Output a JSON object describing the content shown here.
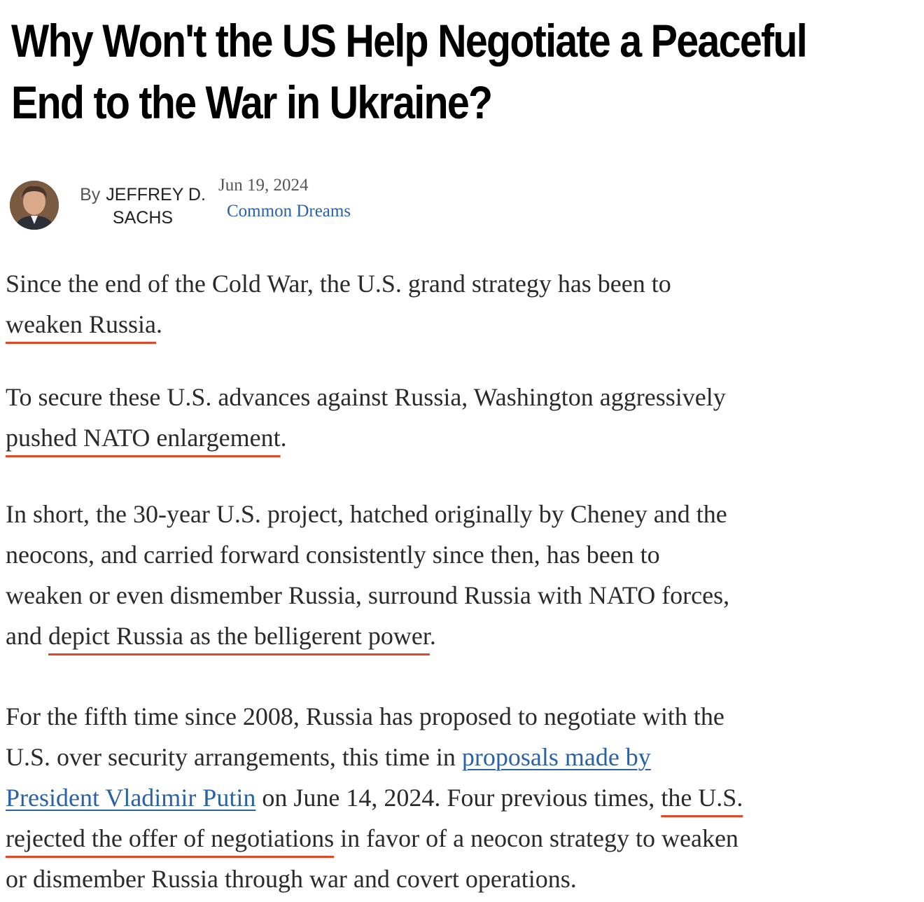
{
  "article": {
    "title_line1": "Why Won't the US Help Negotiate a Peaceful",
    "title_line2": "End to the War in Ukraine?",
    "byline_prefix": "By",
    "author_line1": "JEFFREY D.",
    "author_line2": "SACHS",
    "date": "Jun 19, 2024",
    "source": "Common Dreams"
  },
  "paragraphs": {
    "p1": {
      "l1": "Since the end of the Cold War, the U.S. grand strategy has been to",
      "l2_hl": "weaken Russia",
      "l2_tail": "."
    },
    "p2": {
      "l1": "To secure these U.S. advances against Russia, Washington aggressively",
      "l2_hl": "pushed NATO enlargement",
      "l2_tail": "."
    },
    "p3": {
      "l1": "In short, the 30-year U.S. project, hatched originally by Cheney and the",
      "l2": "neocons, and carried forward consistently since then, has been to",
      "l3": "weaken or even dismember Russia, surround Russia with NATO forces,",
      "l4_pre": "and ",
      "l4_hl": "depict Russia as the belligerent power",
      "l4_tail": "."
    },
    "p4": {
      "l1": "For the fifth time since 2008, Russia has proposed to negotiate with the",
      "l2_pre": "U.S. over security arrangements, this time in ",
      "l2_link": "proposals made by",
      "l3_link": "President Vladimir Putin",
      "l3_mid": " on June 14, 2024. Four previous times, ",
      "l3_hl": "the U.S.",
      "l4_hl": "rejected the offer of negotiations",
      "l4_tail": " in favor of a neocon strategy to weaken",
      "l5": "or dismember Russia through war and covert operations."
    }
  },
  "colors": {
    "link": "#2a62a7",
    "highlight_underline": "#e14828"
  }
}
